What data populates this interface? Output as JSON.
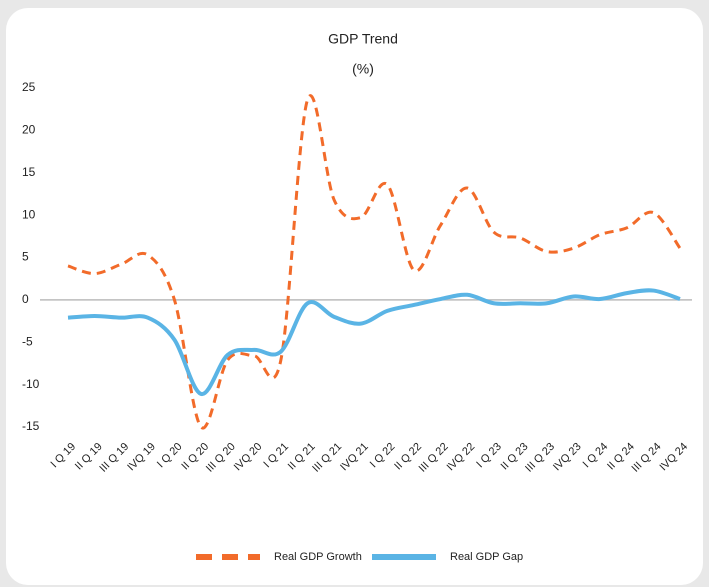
{
  "chart_data": {
    "type": "line",
    "title": "GDP Trend",
    "subtitle": "(%)",
    "categories": [
      "I Q 19",
      "II Q 19",
      "III Q 19",
      "IVQ 19",
      "I Q 20",
      "II Q 20",
      "III Q 20",
      "IVQ 20",
      "I Q 21",
      "II Q 21",
      "III Q 21",
      "IVQ 21",
      "I Q 22",
      "II Q 22",
      "III Q 22",
      "IVQ 22",
      "I Q 23",
      "II Q 23",
      "III Q 23",
      "IVQ 23",
      "I Q 24",
      "II Q 24",
      "III Q 24",
      "IVQ 24"
    ],
    "series": [
      {
        "name": "Real GDP Growth",
        "color": "#f26b2a",
        "dash": true,
        "values": [
          4.0,
          3.1,
          4.2,
          5.3,
          0,
          -15,
          -7.1,
          -6.6,
          -7.1,
          23.6,
          11.8,
          9.7,
          13.6,
          3.5,
          8.8,
          13.2,
          8,
          7.3,
          5.7,
          6.1,
          7.7,
          8.5,
          10.3,
          6.1
        ]
      },
      {
        "name": "Real GDP Gap",
        "color": "#5ab4e5",
        "dash": false,
        "values": [
          -2.1,
          -1.9,
          -2.1,
          -2.1,
          -4.7,
          -11.1,
          -6.5,
          -5.9,
          -6.1,
          -0.4,
          -2,
          -2.8,
          -1.3,
          -0.6,
          0.1,
          0.6,
          -0.4,
          -0.4,
          -0.4,
          0.4,
          0.1,
          0.8,
          1.1,
          0.1
        ]
      }
    ],
    "ylim": [
      -15,
      25
    ],
    "yticks": [
      -15,
      -10,
      -5,
      0,
      5,
      10,
      15,
      20,
      25
    ],
    "grid": false
  }
}
